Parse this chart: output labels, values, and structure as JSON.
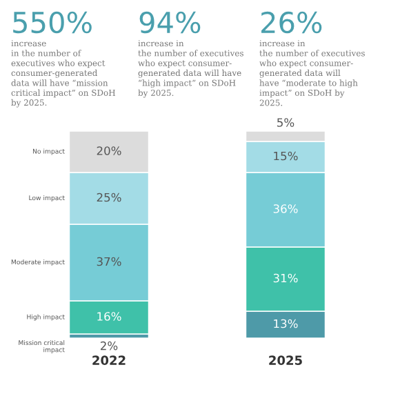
{
  "chart_data": {
    "type": "bar",
    "stacked": true,
    "legend": false,
    "grid": false,
    "categories": [
      "2022",
      "2025"
    ],
    "series": [
      {
        "name": "Mission critical impact",
        "color": "#4e9aa8",
        "values": [
          2,
          13
        ],
        "value_labels": [
          "2%",
          "13%"
        ]
      },
      {
        "name": "High impact",
        "color": "#3fc1a9",
        "values": [
          16,
          31
        ],
        "value_labels": [
          "16%",
          "31%"
        ]
      },
      {
        "name": "Moderate impact",
        "color": "#76ccd6",
        "values": [
          37,
          36
        ],
        "value_labels": [
          "37%",
          "36%"
        ]
      },
      {
        "name": "Low impact",
        "color": "#a3dce6",
        "values": [
          25,
          15
        ],
        "value_labels": [
          "25%",
          "15%"
        ]
      },
      {
        "name": "No impact",
        "color": "#dcdcdc",
        "values": [
          20,
          5
        ],
        "value_labels": [
          "20%",
          "5%"
        ]
      }
    ],
    "annotations": [
      "550%",
      "increase\nin the number of\nexecutives who expect\nconsumer-generated\ndata will have “mission\ncritical impact” on SDoH\nby 2025.",
      "94%",
      "increase in\nthe number of executives\nwho expect consumer-\ngenerated data will have\n“high impact” on SDoH\nby 2025.",
      "26%",
      "increase in\nthe number of executives\nwho expect consumer-\ngenerated data will\nhave “moderate to high\nimpact” on SDoH by\n2025."
    ]
  }
}
